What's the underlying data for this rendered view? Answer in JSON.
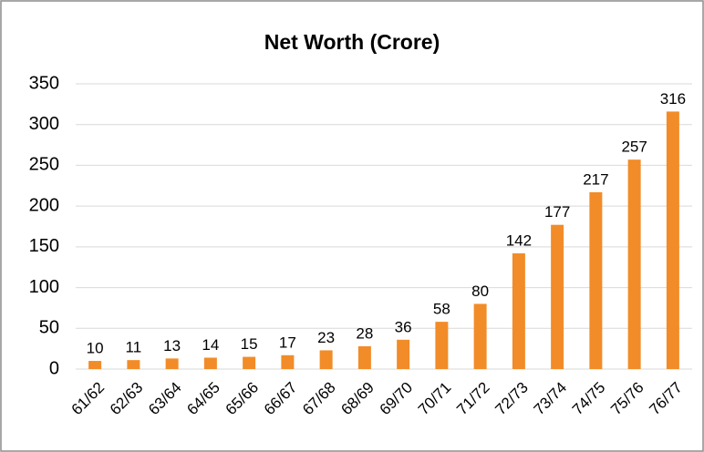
{
  "chart_data": {
    "type": "bar",
    "title": "Net Worth (Crore)",
    "categories": [
      "61/62",
      "62/63",
      "63/64",
      "64/65",
      "65/66",
      "66/67",
      "67/68",
      "68/69",
      "69/70",
      "70/71",
      "71/72",
      "72/73",
      "73/74",
      "74/75",
      "75/76",
      "76/77"
    ],
    "values": [
      10,
      11,
      13,
      14,
      15,
      17,
      23,
      28,
      36,
      58,
      80,
      142,
      177,
      217,
      257,
      316
    ],
    "color": "#f28c28",
    "ylim": [
      0,
      350
    ],
    "yticks": [
      0,
      50,
      100,
      150,
      200,
      250,
      300,
      350
    ],
    "grid": true
  }
}
